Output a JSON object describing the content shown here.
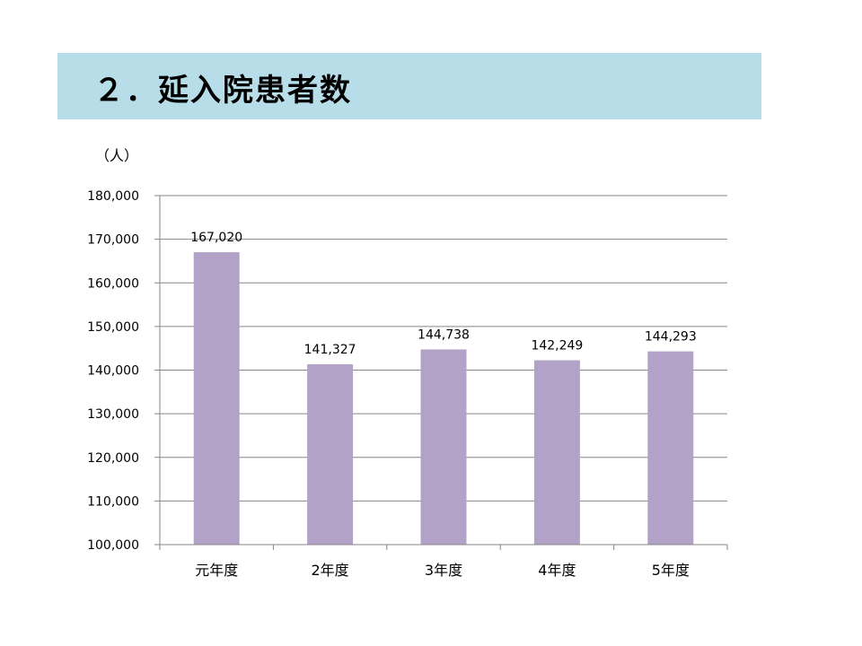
{
  "title": "２．延入院患者数",
  "unit_label": "（人）",
  "colors": {
    "banner": "#b7dde8",
    "bar": "#b2a2c7",
    "grid": "#868686"
  },
  "chart_data": {
    "type": "bar",
    "title": "",
    "xlabel": "",
    "ylabel": "",
    "categories": [
      "元年度",
      "2年度",
      "3年度",
      "4年度",
      "5年度"
    ],
    "values": [
      167020,
      141327,
      144738,
      142249,
      144293
    ],
    "value_labels": [
      "167,020",
      "141,327",
      "144,738",
      "142,249",
      "144,293"
    ],
    "ylim": [
      100000,
      180000
    ],
    "y_ticks": [
      100000,
      110000,
      120000,
      130000,
      140000,
      150000,
      160000,
      170000,
      180000
    ],
    "y_tick_labels": [
      "100,000",
      "110,000",
      "120,000",
      "130,000",
      "140,000",
      "150,000",
      "160,000",
      "170,000",
      "180,000"
    ],
    "grid": true,
    "legend": "none"
  }
}
